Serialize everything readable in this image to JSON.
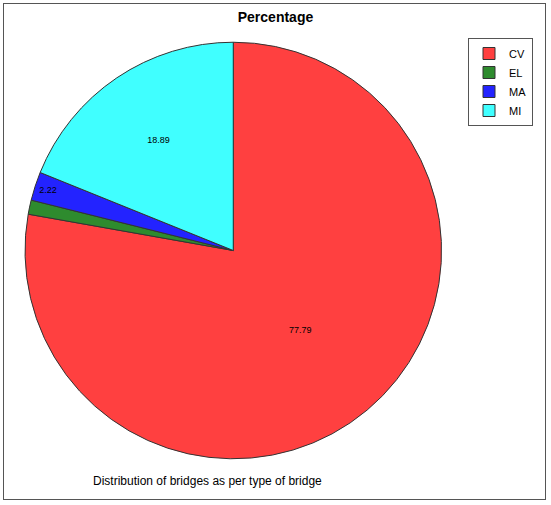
{
  "chart_data": {
    "type": "pie",
    "title": "Percentage",
    "caption": "Distribution of bridges as per type of bridge",
    "categories": [
      "CV",
      "EL",
      "MA",
      "MI"
    ],
    "values": [
      77.79,
      1.1,
      2.22,
      18.89
    ],
    "value_labels": [
      "77.79",
      null,
      "2.22",
      "18.89"
    ],
    "colors": [
      "#ff4040",
      "#2e8b2e",
      "#2323ff",
      "#40ffff"
    ],
    "data_labels": true,
    "legend": "top-right"
  }
}
